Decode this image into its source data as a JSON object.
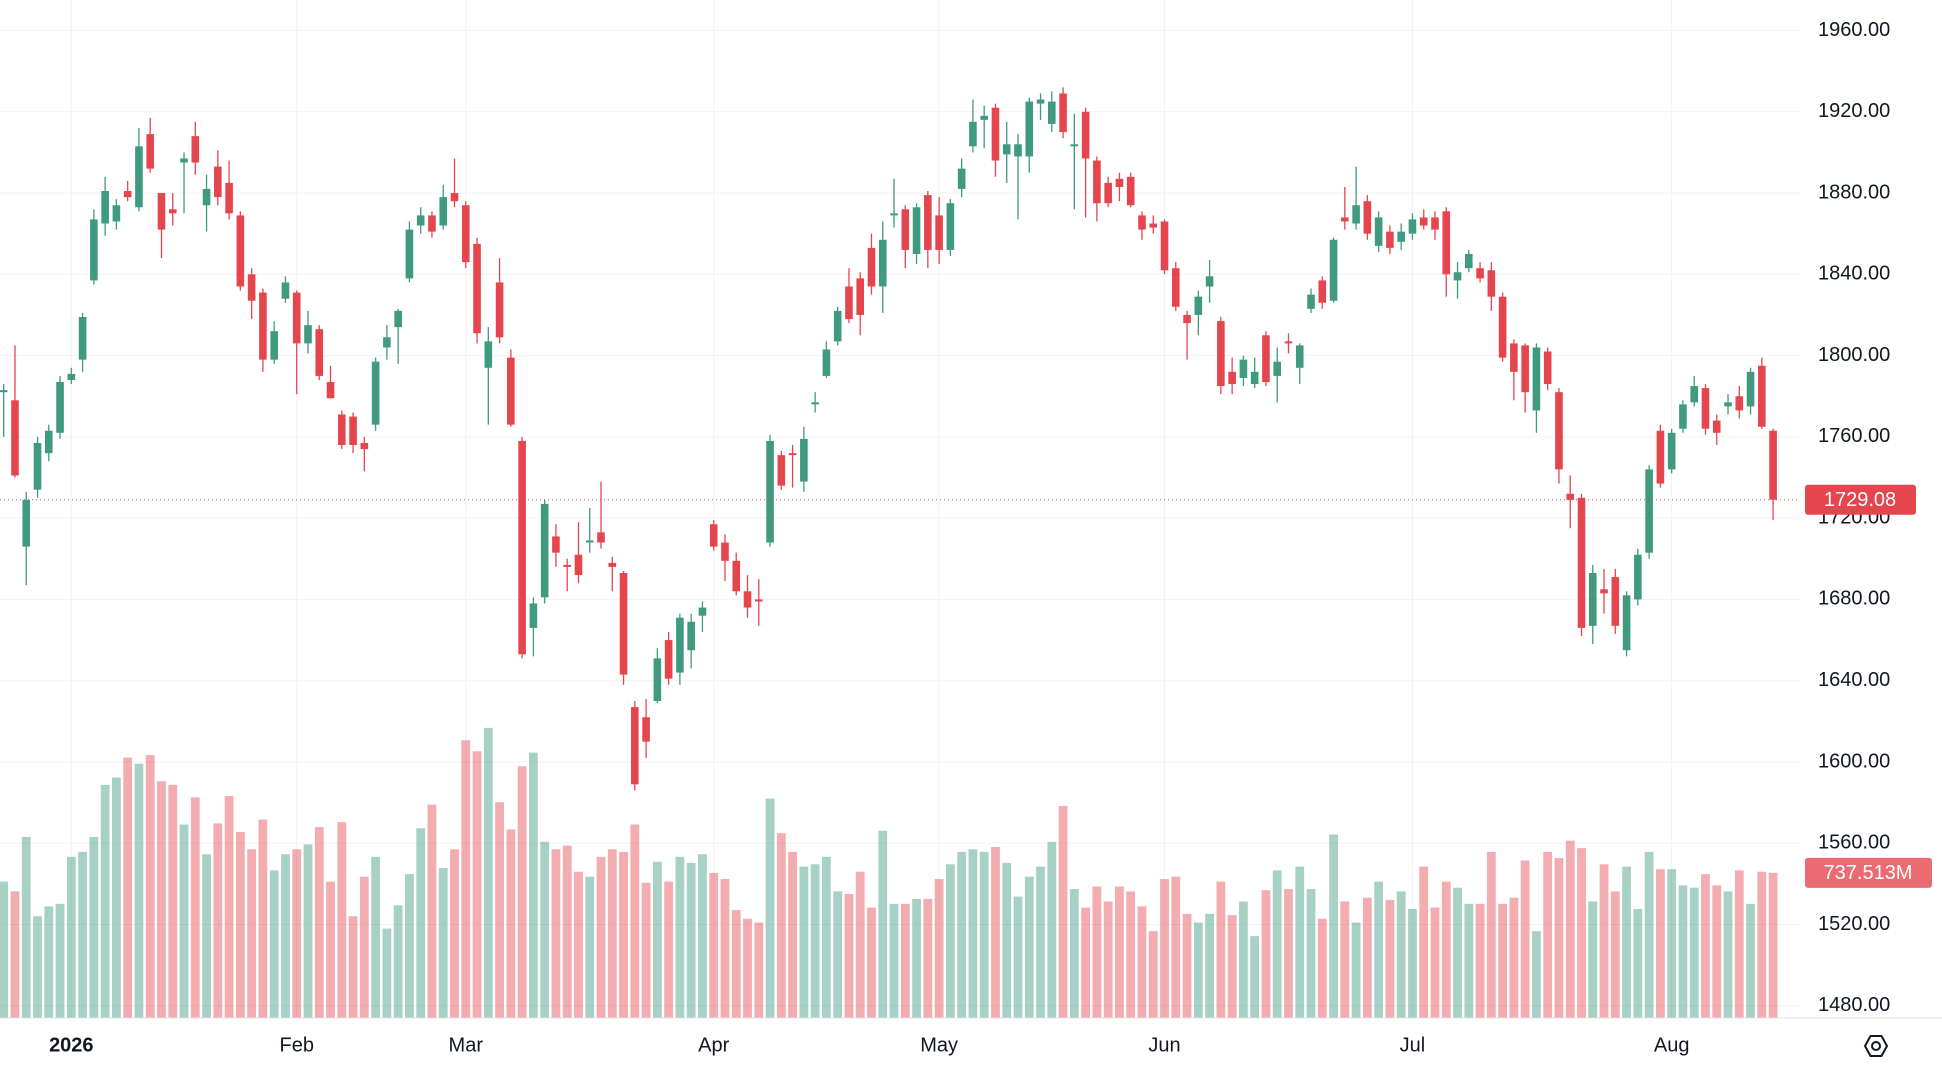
{
  "chart_data": {
    "type": "candlestick",
    "categories": [
      null,
      null,
      null,
      null,
      null,
      null,
      "2026",
      null,
      null,
      null,
      null,
      null,
      null,
      null,
      null,
      null,
      null,
      null,
      null,
      null,
      null,
      null,
      null,
      null,
      null,
      null,
      "Feb",
      null,
      null,
      null,
      null,
      null,
      null,
      null,
      null,
      null,
      null,
      null,
      null,
      null,
      null,
      "Mar",
      null,
      null,
      null,
      null,
      null,
      null,
      null,
      null,
      null,
      null,
      null,
      null,
      null,
      null,
      null,
      null,
      null,
      null,
      null,
      null,
      null,
      "Apr",
      null,
      null,
      null,
      null,
      null,
      null,
      null,
      null,
      null,
      null,
      null,
      null,
      null,
      null,
      null,
      null,
      null,
      null,
      null,
      "May",
      null,
      null,
      null,
      null,
      null,
      null,
      null,
      null,
      null,
      null,
      null,
      null,
      null,
      null,
      null,
      null,
      null,
      null,
      null,
      "Jun",
      null,
      null,
      null,
      null,
      null,
      null,
      null,
      null,
      null,
      null,
      null,
      null,
      null,
      null,
      null,
      null,
      null,
      null,
      null,
      null,
      null,
      "Jul",
      null,
      null,
      null,
      null,
      null,
      null,
      null,
      null,
      null,
      null,
      null,
      null,
      null,
      null,
      null,
      null,
      null,
      null,
      null,
      null,
      null,
      null,
      "Aug",
      null,
      null,
      null,
      null,
      null,
      null,
      null,
      null,
      null
    ],
    "open": [
      1782,
      1778,
      1706,
      1734,
      1752,
      1762,
      1788,
      1798,
      1837,
      1865,
      1866,
      1881,
      1873,
      1909,
      1880,
      1872,
      1895,
      1908,
      1874,
      1893,
      1885,
      1869,
      1840,
      1831,
      1798,
      1828,
      1831,
      1806,
      1813,
      1787,
      1771,
      1770,
      1757,
      1766,
      1804,
      1814,
      1838,
      1864,
      1869,
      1864,
      1880,
      1874,
      1855,
      1794,
      1836,
      1799,
      1758,
      1666,
      1681,
      1711,
      1697,
      1702,
      1708,
      1713,
      1698,
      1693,
      1627,
      1622,
      1630,
      1660,
      1644,
      1655,
      1672,
      1717,
      1708,
      1699,
      1684,
      1680,
      1708,
      1751,
      1752,
      1738,
      1776,
      1790,
      1807,
      1834,
      1838,
      1853,
      1834,
      1869,
      1872,
      1850,
      1879,
      1869,
      1852,
      1882,
      1903,
      1916,
      1922,
      1899,
      1898,
      1898,
      1924,
      1914,
      1929,
      1903,
      1920,
      1896,
      1885,
      1887,
      1888,
      1869,
      1865,
      1866,
      1843,
      1820,
      1820,
      1834,
      1817,
      1792,
      1789,
      1786,
      1810,
      1790,
      1807,
      1794,
      1823,
      1837,
      1827,
      1868,
      1865,
      1876,
      1854,
      1861,
      1856,
      1860,
      1868,
      1868,
      1871,
      1837,
      1843,
      1843,
      1842,
      1829,
      1806,
      1805,
      1773,
      1802,
      1782,
      1732,
      1730,
      1667,
      1685,
      1691,
      1655,
      1680,
      1703,
      1763,
      1744,
      1764,
      1777,
      1784,
      1768,
      1775,
      1780,
      1775,
      1795,
      1763
    ],
    "high": [
      1786,
      1805,
      1733,
      1760,
      1766,
      1790,
      1794,
      1821,
      1872,
      1888,
      1877,
      1886,
      1912,
      1917,
      1880,
      1880,
      1900,
      1915,
      1889,
      1901,
      1896,
      1871,
      1843,
      1833,
      1817,
      1839,
      1832,
      1822,
      1815,
      1795,
      1773,
      1772,
      1760,
      1799,
      1815,
      1823,
      1866,
      1873,
      1871,
      1884,
      1897,
      1876,
      1858,
      1814,
      1848,
      1803,
      1760,
      1681,
      1729,
      1717,
      1700,
      1718,
      1725,
      1738,
      1701,
      1694,
      1630,
      1631,
      1656,
      1664,
      1673,
      1673,
      1679,
      1719,
      1712,
      1703,
      1692,
      1690,
      1761,
      1753,
      1756,
      1765,
      1782,
      1807,
      1824,
      1843,
      1841,
      1860,
      1866,
      1887,
      1874,
      1875,
      1881,
      1878,
      1877,
      1897,
      1926,
      1923,
      1924,
      1915,
      1909,
      1927,
      1929,
      1930,
      1932,
      1919,
      1922,
      1898,
      1888,
      1890,
      1890,
      1871,
      1869,
      1867,
      1846,
      1822,
      1832,
      1847,
      1819,
      1799,
      1800,
      1799,
      1812,
      1804,
      1811,
      1806,
      1833,
      1839,
      1858,
      1883,
      1893,
      1879,
      1871,
      1864,
      1865,
      1870,
      1872,
      1871,
      1873,
      1846,
      1852,
      1846,
      1846,
      1831,
      1808,
      1806,
      1806,
      1804,
      1784,
      1741,
      1732,
      1697,
      1695,
      1695,
      1684,
      1705,
      1746,
      1766,
      1764,
      1778,
      1790,
      1786,
      1771,
      1781,
      1785,
      1794,
      1799,
      1764
    ],
    "low": [
      1760,
      1740,
      1687,
      1730,
      1748,
      1759,
      1786,
      1792,
      1835,
      1859,
      1862,
      1876,
      1871,
      1890,
      1848,
      1864,
      1870,
      1889,
      1861,
      1874,
      1867,
      1832,
      1818,
      1792,
      1796,
      1826,
      1781,
      1801,
      1788,
      1779,
      1754,
      1752,
      1743,
      1763,
      1798,
      1796,
      1836,
      1860,
      1858,
      1862,
      1873,
      1843,
      1806,
      1766,
      1806,
      1765,
      1651,
      1652,
      1678,
      1696,
      1684,
      1688,
      1703,
      1705,
      1684,
      1638,
      1586,
      1602,
      1629,
      1638,
      1638,
      1646,
      1664,
      1704,
      1689,
      1682,
      1671,
      1667,
      1706,
      1734,
      1735,
      1733,
      1772,
      1789,
      1805,
      1816,
      1810,
      1830,
      1821,
      1863,
      1843,
      1845,
      1843,
      1845,
      1849,
      1878,
      1900,
      1902,
      1888,
      1885,
      1867,
      1890,
      1916,
      1910,
      1907,
      1872,
      1868,
      1866,
      1873,
      1876,
      1873,
      1857,
      1860,
      1840,
      1822,
      1798,
      1810,
      1826,
      1781,
      1781,
      1785,
      1784,
      1785,
      1777,
      1801,
      1786,
      1821,
      1823,
      1826,
      1862,
      1862,
      1857,
      1851,
      1850,
      1852,
      1857,
      1862,
      1857,
      1829,
      1828,
      1841,
      1836,
      1822,
      1797,
      1778,
      1772,
      1762,
      1783,
      1737,
      1715,
      1662,
      1658,
      1673,
      1663,
      1652,
      1677,
      1700,
      1735,
      1742,
      1762,
      1775,
      1761,
      1756,
      1771,
      1769,
      1771,
      1764,
      1719
    ],
    "close": [
      1783,
      1741,
      1729,
      1757,
      1763,
      1787,
      1791,
      1819,
      1867,
      1881,
      1874,
      1878,
      1903,
      1892,
      1862,
      1870,
      1897,
      1895,
      1882,
      1878,
      1870,
      1834,
      1827,
      1798,
      1812,
      1836,
      1806,
      1815,
      1790,
      1779,
      1756,
      1756,
      1754,
      1797,
      1809,
      1822,
      1862,
      1869,
      1861,
      1878,
      1876,
      1846,
      1811,
      1807,
      1809,
      1766,
      1653,
      1678,
      1727,
      1703,
      1696,
      1692,
      1709,
      1708,
      1696,
      1643,
      1589,
      1610,
      1651,
      1641,
      1671,
      1669,
      1676,
      1706,
      1699,
      1684,
      1676,
      1679,
      1758,
      1736,
      1751,
      1759,
      1777,
      1803,
      1822,
      1818,
      1820,
      1834,
      1857,
      1870,
      1852,
      1873,
      1852,
      1852,
      1875,
      1892,
      1915,
      1918,
      1896,
      1904,
      1904,
      1925,
      1926,
      1925,
      1910,
      1904,
      1897,
      1875,
      1875,
      1883,
      1874,
      1862,
      1863,
      1842,
      1824,
      1816,
      1829,
      1839,
      1785,
      1786,
      1798,
      1792,
      1787,
      1797,
      1806,
      1805,
      1830,
      1826,
      1857,
      1866,
      1874,
      1860,
      1868,
      1853,
      1861,
      1867,
      1864,
      1862,
      1840,
      1841,
      1850,
      1838,
      1829,
      1799,
      1792,
      1782,
      1804,
      1786,
      1744,
      1729,
      1666,
      1693,
      1683,
      1667,
      1682,
      1702,
      1744,
      1737,
      1762,
      1776,
      1785,
      1764,
      1762,
      1777,
      1773,
      1792,
      1765,
      1729.08
    ],
    "volume": [
      693,
      643,
      920,
      517,
      567,
      580,
      819,
      844,
      920,
      1184,
      1222,
      1323,
      1292,
      1336,
      1203,
      1184,
      983,
      1121,
      832,
      989,
      1128,
      945,
      857,
      1008,
      750,
      832,
      857,
      882,
      970,
      693,
      995,
      517,
      718,
      819,
      454,
      573,
      731,
      964,
      1084,
      762,
      857,
      1411,
      1355,
      1474,
      1096,
      958,
      1279,
      1348,
      895,
      857,
      876,
      743,
      718,
      819,
      857,
      844,
      983,
      687,
      794,
      693,
      819,
      788,
      832,
      737,
      706,
      548,
      504,
      485,
      1115,
      939,
      844,
      769,
      781,
      819,
      643,
      630,
      743,
      561,
      951,
      580,
      580,
      605,
      605,
      706,
      781,
      844,
      857,
      844,
      869,
      788,
      617,
      718,
      769,
      895,
      1077,
      655,
      561,
      668,
      592,
      668,
      643,
      567,
      441,
      706,
      718,
      529,
      485,
      529,
      693,
      523,
      592,
      416,
      649,
      750,
      655,
      769,
      655,
      504,
      932,
      592,
      485,
      611,
      693,
      599,
      643,
      554,
      769,
      561,
      693,
      662,
      580,
      580,
      844,
      580,
      611,
      800,
      441,
      844,
      813,
      901,
      863,
      592,
      781,
      643,
      769,
      554,
      844,
      756,
      756,
      674,
      662,
      731,
      674,
      643,
      750,
      580,
      743,
      737.513
    ],
    "volume_label": "737.513M",
    "ylim": [
      1474,
      1975
    ],
    "yticks": [
      {
        "value": 1480,
        "label": "1480.00"
      },
      {
        "value": 1520,
        "label": "1520.00"
      },
      {
        "value": 1560,
        "label": "1560.00"
      },
      {
        "value": 1600,
        "label": "1600.00"
      },
      {
        "value": 1640,
        "label": "1640.00"
      },
      {
        "value": 1680,
        "label": "1680.00"
      },
      {
        "value": 1720,
        "label": "1720.00"
      },
      {
        "value": 1760,
        "label": "1760.00"
      },
      {
        "value": 1800,
        "label": "1800.00"
      },
      {
        "value": 1840,
        "label": "1840.00"
      },
      {
        "value": 1880,
        "label": "1880.00"
      },
      {
        "value": 1920,
        "label": "1920.00"
      },
      {
        "value": 1960,
        "label": "1960.00"
      }
    ],
    "grid": true,
    "up_color": "#3f9a80",
    "down_color": "#e5464e"
  }
}
